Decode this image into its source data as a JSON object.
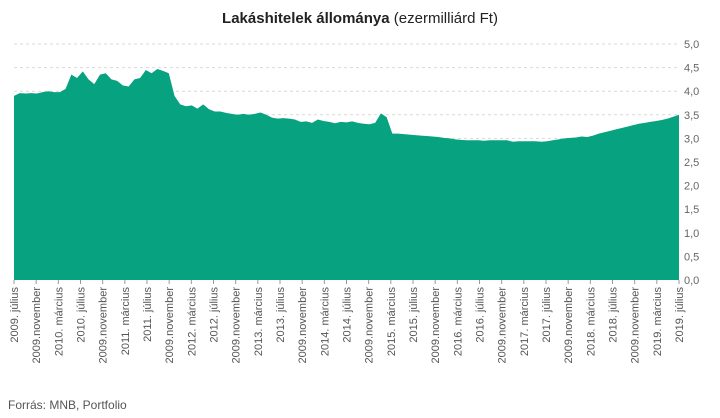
{
  "header": {
    "title_bold": "Lakáshitelek állománya",
    "title_rest": " (ezermilliárd Ft)"
  },
  "footer": {
    "source": "Forrás: MNB, Portfolio"
  },
  "chart_data": {
    "type": "area",
    "title": "Lakáshitelek állománya (ezermilliárd Ft)",
    "xlabel": "",
    "ylabel": "",
    "ylim": [
      0,
      5
    ],
    "yticks": [
      "0,0",
      "0,5",
      "1,0",
      "1,5",
      "2,0",
      "2,5",
      "3,0",
      "3,5",
      "4,0",
      "4,5",
      "5,0"
    ],
    "grid": true,
    "color": "#07a27f",
    "x_tick_labels": [
      "2009. július",
      "2009.november",
      "2010. március",
      "2010. július",
      "2009.november",
      "2011. március",
      "2011. július",
      "2009.november",
      "2012. március",
      "2012. július",
      "2009.november",
      "2013. március",
      "2013. július",
      "2009.november",
      "2014. március",
      "2014. július",
      "2009.november",
      "2015. március",
      "2015. július",
      "2009.november",
      "2016. március",
      "2016. július",
      "2009.november",
      "2017. március",
      "2017. július",
      "2009.november",
      "2018. március",
      "2018. július",
      "2009.november",
      "2019. március",
      "2019. július"
    ],
    "values": [
      3.9,
      3.96,
      3.95,
      3.96,
      3.95,
      3.98,
      4.0,
      3.98,
      3.98,
      4.05,
      4.35,
      4.28,
      4.42,
      4.25,
      4.15,
      4.35,
      4.38,
      4.25,
      4.22,
      4.12,
      4.1,
      4.25,
      4.28,
      4.45,
      4.38,
      4.47,
      4.43,
      4.38,
      3.9,
      3.72,
      3.68,
      3.7,
      3.63,
      3.72,
      3.62,
      3.57,
      3.57,
      3.54,
      3.52,
      3.5,
      3.52,
      3.5,
      3.52,
      3.55,
      3.5,
      3.44,
      3.42,
      3.43,
      3.42,
      3.4,
      3.35,
      3.36,
      3.33,
      3.4,
      3.37,
      3.35,
      3.32,
      3.35,
      3.34,
      3.36,
      3.33,
      3.31,
      3.3,
      3.33,
      3.53,
      3.45,
      3.1,
      3.1,
      3.09,
      3.08,
      3.07,
      3.06,
      3.05,
      3.04,
      3.03,
      3.01,
      3.0,
      2.98,
      2.97,
      2.96,
      2.96,
      2.96,
      2.95,
      2.96,
      2.96,
      2.96,
      2.96,
      2.93,
      2.94,
      2.94,
      2.94,
      2.94,
      2.93,
      2.94,
      2.96,
      2.98,
      3.0,
      3.01,
      3.02,
      3.04,
      3.03,
      3.06,
      3.1,
      3.13,
      3.16,
      3.19,
      3.22,
      3.25,
      3.28,
      3.31,
      3.33,
      3.35,
      3.37,
      3.39,
      3.42,
      3.46,
      3.5
    ]
  }
}
